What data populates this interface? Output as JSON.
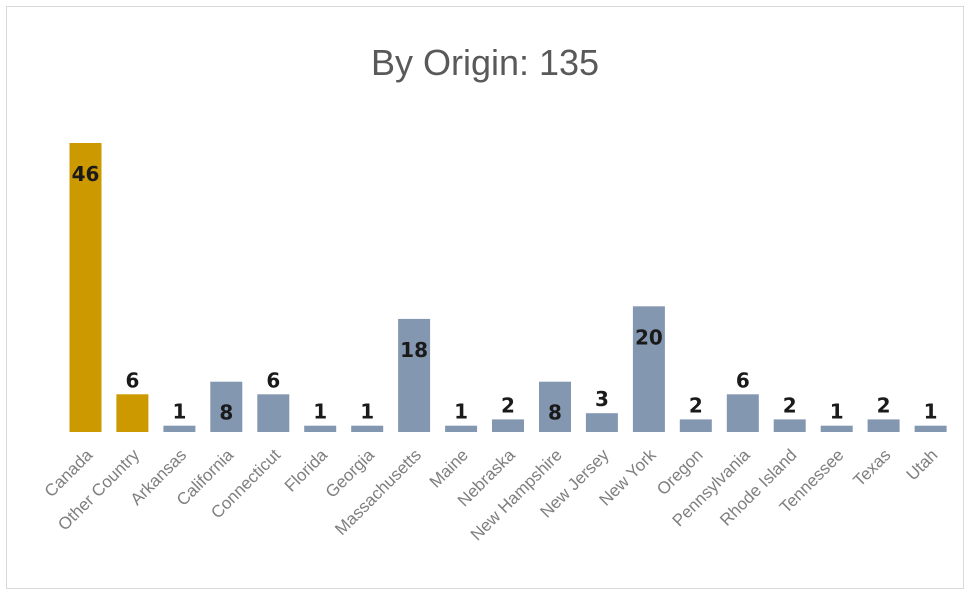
{
  "chart_data": {
    "type": "bar",
    "title": "By Origin: 135",
    "categories": [
      "Canada",
      "Other Country",
      "Arkansas",
      "California",
      "Connecticut",
      "Florida",
      "Georgia",
      "Massachusetts",
      "Maine",
      "Nebraska",
      "New Hampshire",
      "New Jersey",
      "New York",
      "Oregon",
      "Pennsylvania",
      "Rhode Island",
      "Tennessee",
      "Texas",
      "Utah"
    ],
    "values": [
      46,
      6,
      1,
      8,
      6,
      1,
      1,
      18,
      1,
      2,
      8,
      3,
      20,
      2,
      6,
      2,
      1,
      2,
      1
    ],
    "colors": [
      "#cc9900",
      "#cc9900",
      "#8497b0",
      "#8497b0",
      "#8497b0",
      "#8497b0",
      "#8497b0",
      "#8497b0",
      "#8497b0",
      "#8497b0",
      "#8497b0",
      "#8497b0",
      "#8497b0",
      "#8497b0",
      "#8497b0",
      "#8497b0",
      "#8497b0",
      "#8497b0",
      "#8497b0"
    ],
    "ylim": [
      0,
      46
    ],
    "data_labels": true,
    "legend": "none",
    "grid": false
  }
}
